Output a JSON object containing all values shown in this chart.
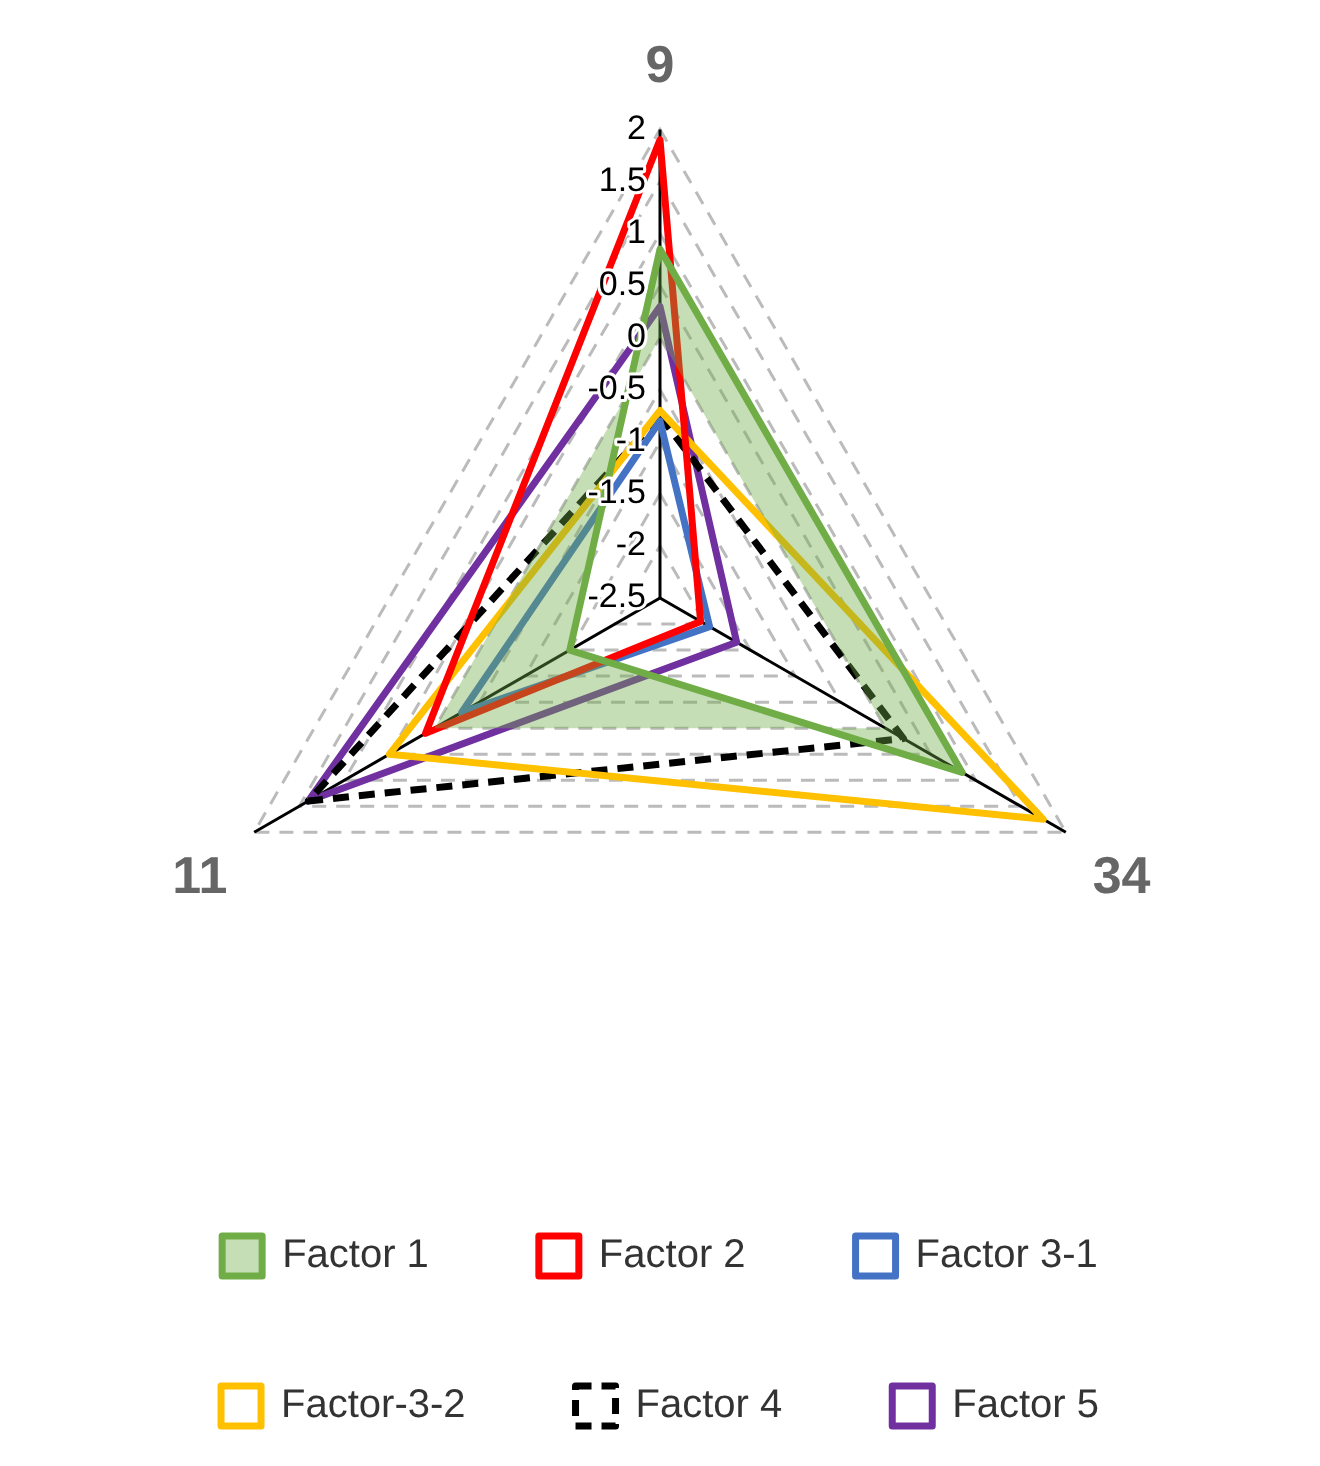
{
  "chart_data": {
    "type": "radar",
    "categories": [
      "9",
      "34",
      "11"
    ],
    "series": [
      {
        "name": "Factor 1",
        "type": "area",
        "color": "#70ad47",
        "values": [
          0.85,
          0.85,
          -1.5
        ]
      },
      {
        "name": "Factor 2",
        "color": "#ff0000",
        "values": [
          1.9,
          -2.05,
          0.1
        ]
      },
      {
        "name": "Factor 3-1",
        "color": "#4472c4",
        "values": [
          -0.8,
          -1.95,
          -0.3
        ]
      },
      {
        "name": "Factor-3-2",
        "color": "#ffc000",
        "values": [
          -0.7,
          1.75,
          0.5
        ]
      },
      {
        "name": "Factor 4",
        "color": "#000000",
        "line_style": "dashed",
        "values": [
          -0.75,
          0.2,
          1.4
        ]
      },
      {
        "name": "Factor 5",
        "color": "#7030a0",
        "values": [
          0.3,
          -1.65,
          1.4
        ]
      }
    ],
    "ylim": [
      -2.5,
      2
    ],
    "yticks": [
      -2.5,
      -2,
      -1.5,
      -1,
      -0.5,
      0,
      0.5,
      1,
      1.5,
      2
    ],
    "grid": true,
    "legend": "bottom",
    "marker": "none"
  }
}
